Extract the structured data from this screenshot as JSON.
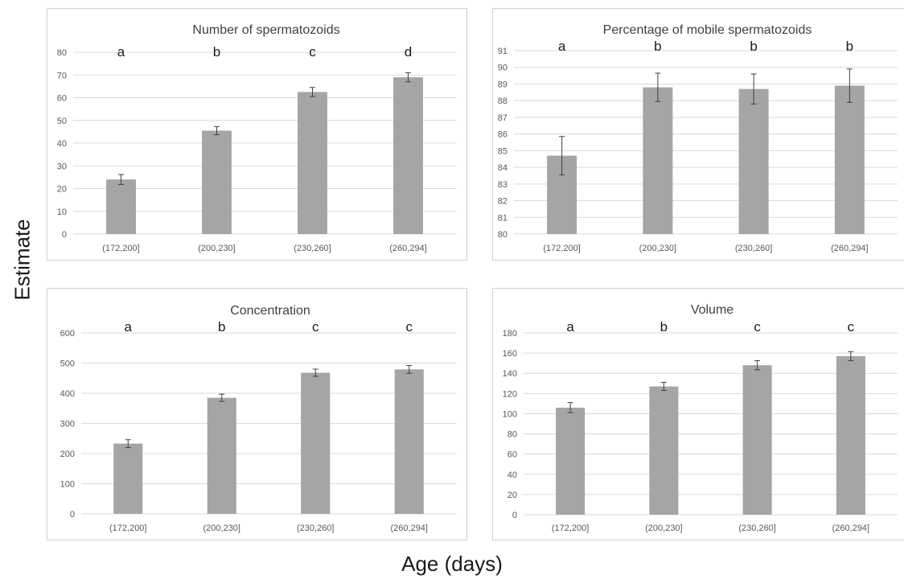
{
  "figure": {
    "ylabel": "Estimate",
    "xlabel": "Age (days)"
  },
  "colors": {
    "bar": "#a5a5a5",
    "grid": "#d9d9d9",
    "axis_text": "#595959",
    "title_text": "#404040",
    "error_bar": "#404040"
  },
  "chart_data": [
    {
      "type": "bar",
      "title": "Number of spermatozoids",
      "categories": [
        "(172,200]",
        "(200,230]",
        "(230,260]",
        "(260,294]"
      ],
      "values": [
        24,
        45.5,
        62.5,
        69
      ],
      "error": [
        2.2,
        1.8,
        2,
        2
      ],
      "group_letters": [
        "a",
        "b",
        "c",
        "d"
      ],
      "ylim": [
        0,
        80
      ],
      "ytick_step": 10,
      "grid": true
    },
    {
      "type": "bar",
      "title": "Percentage of mobile spermatozoids",
      "categories": [
        "(172,200]",
        "(200,230]",
        "(230,260]",
        "(260,294]"
      ],
      "values": [
        84.7,
        88.8,
        88.7,
        88.9
      ],
      "error": [
        1.15,
        0.85,
        0.9,
        1.0
      ],
      "group_letters": [
        "a",
        "b",
        "b",
        "b"
      ],
      "ylim": [
        80,
        91
      ],
      "ytick_step": 1,
      "grid": true
    },
    {
      "type": "bar",
      "title": "Concentration",
      "categories": [
        "(172,200]",
        "(200,230]",
        "(230,260]",
        "(260,294]"
      ],
      "values": [
        233,
        385,
        468,
        479
      ],
      "error": [
        13,
        12,
        12,
        13
      ],
      "group_letters": [
        "a",
        "b",
        "c",
        "c"
      ],
      "ylim": [
        0,
        600
      ],
      "ytick_step": 100,
      "grid": true
    },
    {
      "type": "bar",
      "title": "Volume",
      "categories": [
        "(172,200]",
        "(200,230]",
        "(230,260]",
        "(260,294]"
      ],
      "values": [
        106,
        127,
        148,
        157
      ],
      "error": [
        5,
        4,
        4.5,
        4.5
      ],
      "group_letters": [
        "a",
        "b",
        "c",
        "c"
      ],
      "ylim": [
        0,
        180
      ],
      "ytick_step": 20,
      "grid": true
    }
  ]
}
